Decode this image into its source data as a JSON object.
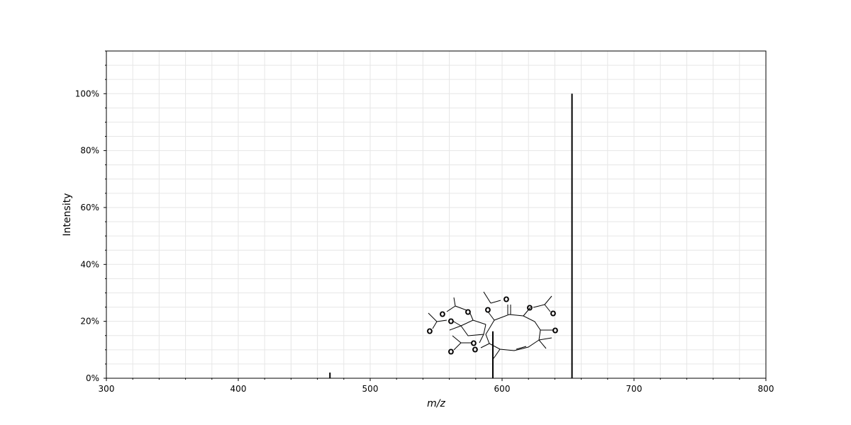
{
  "chart_data": {
    "type": "bar",
    "title": "",
    "xlabel": "m/z",
    "ylabel": "Intensity",
    "xlim": [
      300,
      800
    ],
    "ylim": [
      0,
      115
    ],
    "x_ticks": [
      300,
      400,
      500,
      600,
      700,
      800
    ],
    "y_ticks": [
      0,
      20,
      40,
      60,
      80,
      100
    ],
    "y_tick_suffix": "%",
    "grid": true,
    "legend": "none",
    "peaks": [
      {
        "mz": 469.5,
        "intensity": 2
      },
      {
        "mz": 593.0,
        "intensity": 16.5
      },
      {
        "mz": 653.0,
        "intensity": 100
      }
    ],
    "inset": "molecular-structure",
    "colors": {
      "peaks": "#000000",
      "grid": "#e6e6e6",
      "heteroatom": "#ff0000"
    }
  }
}
